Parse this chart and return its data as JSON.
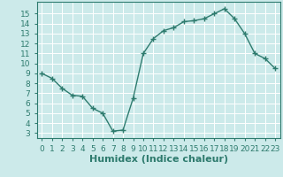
{
  "x": [
    0,
    1,
    2,
    3,
    4,
    5,
    6,
    7,
    8,
    9,
    10,
    11,
    12,
    13,
    14,
    15,
    16,
    17,
    18,
    19,
    20,
    21,
    22,
    23
  ],
  "y": [
    9.0,
    8.5,
    7.5,
    6.8,
    6.7,
    5.5,
    5.0,
    3.2,
    3.3,
    6.5,
    11.0,
    12.5,
    13.3,
    13.6,
    14.2,
    14.3,
    14.5,
    15.0,
    15.5,
    14.5,
    13.0,
    11.0,
    10.5,
    9.5
  ],
  "xlabel": "Humidex (Indice chaleur)",
  "xlim": [
    -0.5,
    23.5
  ],
  "ylim": [
    2.5,
    16.2
  ],
  "yticks": [
    3,
    4,
    5,
    6,
    7,
    8,
    9,
    10,
    11,
    12,
    13,
    14,
    15
  ],
  "xticks": [
    0,
    1,
    2,
    3,
    4,
    5,
    6,
    7,
    8,
    9,
    10,
    11,
    12,
    13,
    14,
    15,
    16,
    17,
    18,
    19,
    20,
    21,
    22,
    23
  ],
  "line_color": "#2e7b6e",
  "bg_color": "#cceaea",
  "grid_color": "#ffffff",
  "xlabel_color": "#2e7b6e",
  "tick_color": "#2e7b6e",
  "xlabel_fontsize": 8,
  "tick_fontsize": 6.5
}
